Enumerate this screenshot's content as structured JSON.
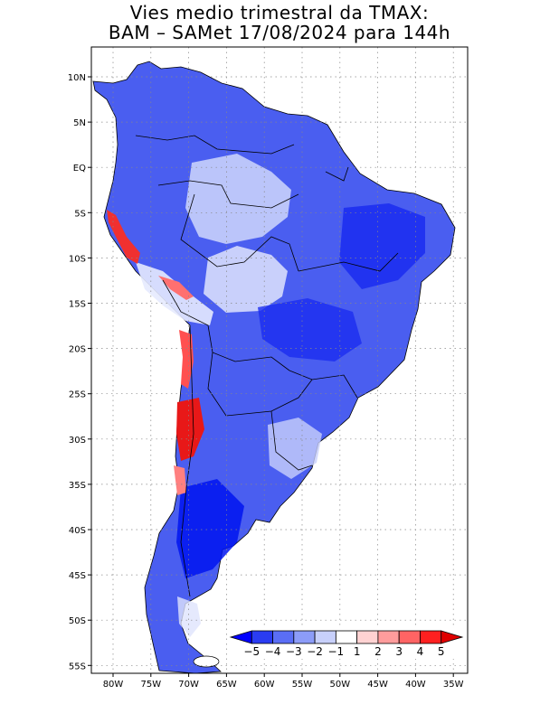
{
  "title_line1": "Vies medio trimestral da TMAX:",
  "title_line2": "BAM – SAMet 17/08/2024  para 144h",
  "map": {
    "lon_labels": [
      "80W",
      "75W",
      "70W",
      "65W",
      "60W",
      "55W",
      "50W",
      "45W",
      "40W",
      "35W"
    ],
    "lat_labels": [
      "10N",
      "5N",
      "EQ",
      "5S",
      "10S",
      "15S",
      "20S",
      "25S",
      "30S",
      "35S",
      "40S",
      "45S",
      "50S",
      "55S"
    ],
    "grid": "dotted"
  },
  "colorbar": {
    "labels": [
      "−5",
      "−4",
      "−3",
      "−2",
      "−1",
      "1",
      "2",
      "3",
      "4",
      "5"
    ],
    "colors": [
      "#0000ff",
      "#2a3cf2",
      "#5a6ef5",
      "#8c9cf8",
      "#c8d0fb",
      "#ffffff",
      "#ffd2d2",
      "#ff9c9c",
      "#ff6464",
      "#ff2020",
      "#e00000"
    ]
  }
}
